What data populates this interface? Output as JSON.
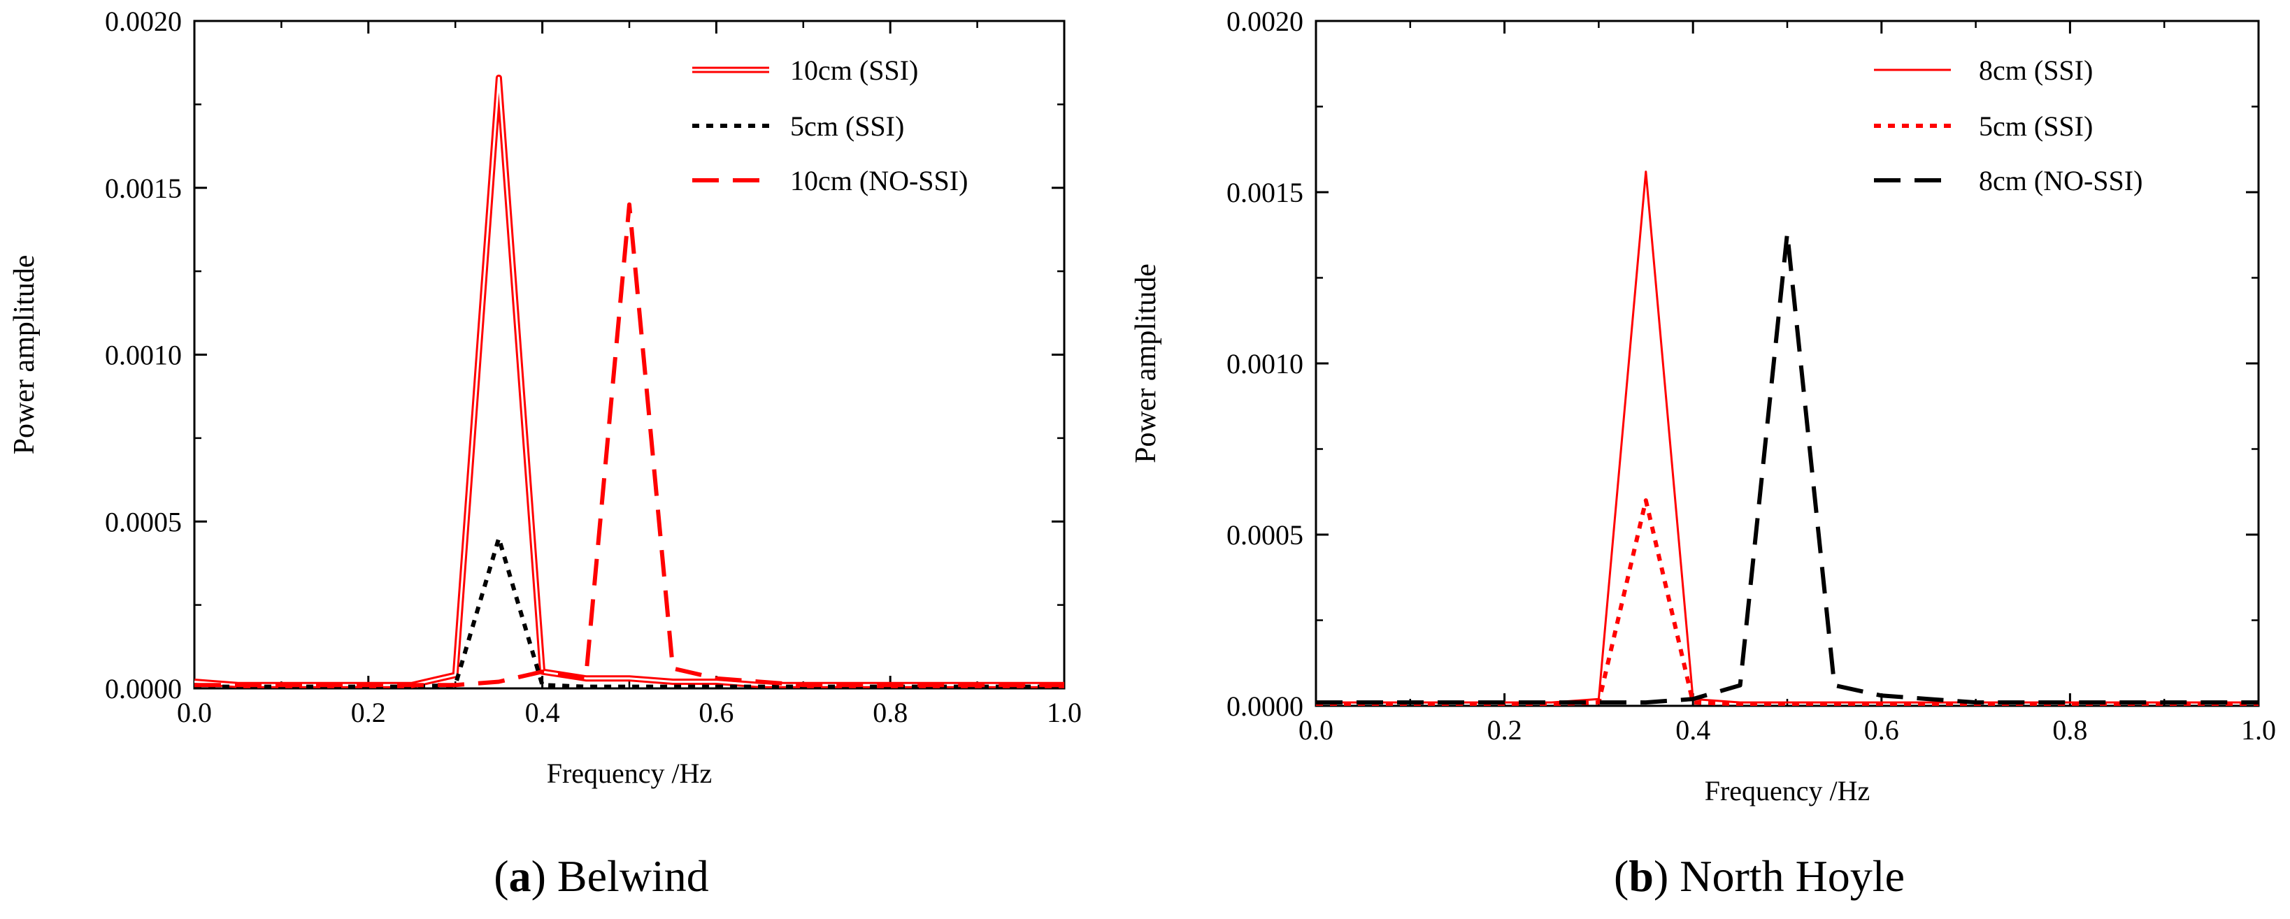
{
  "chart_data": [
    {
      "type": "line",
      "panel_letter": "a",
      "caption": "Belwind",
      "xlabel": "Frequency /Hz",
      "ylabel": "Power amplitude",
      "xlim": [
        0.0,
        1.0
      ],
      "ylim": [
        0.0,
        0.002
      ],
      "xticks": [
        "0.0",
        "0.2",
        "0.4",
        "0.6",
        "0.8",
        "1.0"
      ],
      "yticks": [
        "0.0000",
        "0.0005",
        "0.0010",
        "0.0015",
        "0.0020"
      ],
      "legend_position": "top-right",
      "series": [
        {
          "name": "10cm (SSI)",
          "color": "#ff0000",
          "style": "double",
          "x": [
            0.0,
            0.05,
            0.1,
            0.15,
            0.2,
            0.25,
            0.3,
            0.35,
            0.4,
            0.45,
            0.5,
            0.55,
            0.6,
            0.65,
            0.7,
            0.75,
            0.8,
            0.85,
            0.9,
            0.95,
            1.0
          ],
          "y": [
            2e-05,
            1e-05,
            1e-05,
            1e-05,
            1e-05,
            1e-05,
            4e-05,
            0.00183,
            5e-05,
            3e-05,
            3e-05,
            2e-05,
            2e-05,
            1e-05,
            1e-05,
            1e-05,
            1e-05,
            1e-05,
            1e-05,
            1e-05,
            1e-05
          ]
        },
        {
          "name": "5cm (SSI)",
          "color": "#000000",
          "style": "dotted",
          "x": [
            0.0,
            0.05,
            0.1,
            0.15,
            0.2,
            0.25,
            0.3,
            0.35,
            0.4,
            0.45,
            0.5,
            0.55,
            0.6,
            0.65,
            0.7,
            0.75,
            0.8,
            0.85,
            0.9,
            0.95,
            1.0
          ],
          "y": [
            5e-06,
            5e-06,
            5e-06,
            5e-06,
            5e-06,
            5e-06,
            1e-05,
            0.00045,
            1e-05,
            5e-06,
            5e-06,
            5e-06,
            5e-06,
            5e-06,
            5e-06,
            5e-06,
            5e-06,
            5e-06,
            5e-06,
            5e-06,
            5e-06
          ]
        },
        {
          "name": "10cm (NO-SSI)",
          "color": "#ff0000",
          "style": "dashed",
          "x": [
            0.0,
            0.05,
            0.1,
            0.15,
            0.2,
            0.25,
            0.3,
            0.35,
            0.4,
            0.45,
            0.5,
            0.55,
            0.6,
            0.65,
            0.7,
            0.75,
            0.8,
            0.85,
            0.9,
            0.95,
            1.0
          ],
          "y": [
            1e-05,
            1e-05,
            1e-05,
            1e-05,
            1e-05,
            1e-05,
            1e-05,
            2e-05,
            5e-05,
            3e-05,
            0.00145,
            6e-05,
            3e-05,
            2e-05,
            1e-05,
            1e-05,
            1e-05,
            1e-05,
            1e-05,
            1e-05,
            1e-05
          ]
        }
      ]
    },
    {
      "type": "line",
      "panel_letter": "b",
      "caption": "North Hoyle",
      "xlabel": "Frequency /Hz",
      "ylabel": "Power amplitude",
      "xlim": [
        0.0,
        1.0
      ],
      "ylim": [
        0.0,
        0.002
      ],
      "xticks": [
        "0.0",
        "0.2",
        "0.4",
        "0.6",
        "0.8",
        "1.0"
      ],
      "yticks": [
        "0.0000",
        "0.0005",
        "0.0010",
        "0.0015",
        "0.0020"
      ],
      "legend_position": "top-right",
      "series": [
        {
          "name": "8cm (SSI)",
          "color": "#ff0000",
          "style": "solid",
          "x": [
            0.0,
            0.05,
            0.1,
            0.15,
            0.2,
            0.25,
            0.3,
            0.35,
            0.4,
            0.45,
            0.5,
            0.55,
            0.6,
            0.65,
            0.7,
            0.75,
            0.8,
            0.85,
            0.9,
            0.95,
            1.0
          ],
          "y": [
            1e-05,
            1e-05,
            1e-05,
            1e-05,
            1e-05,
            1e-05,
            2e-05,
            0.00156,
            2e-05,
            1e-05,
            1e-05,
            1e-05,
            1e-05,
            1e-05,
            1e-05,
            1e-05,
            1e-05,
            1e-05,
            1e-05,
            1e-05,
            1e-05
          ]
        },
        {
          "name": "5cm (SSI)",
          "color": "#ff0000",
          "style": "dotted",
          "x": [
            0.0,
            0.05,
            0.1,
            0.15,
            0.2,
            0.25,
            0.3,
            0.35,
            0.4,
            0.45,
            0.5,
            0.55,
            0.6,
            0.65,
            0.7,
            0.75,
            0.8,
            0.85,
            0.9,
            0.95,
            1.0
          ],
          "y": [
            5e-06,
            5e-06,
            5e-06,
            5e-06,
            5e-06,
            5e-06,
            1e-05,
            0.0006,
            1e-05,
            5e-06,
            5e-06,
            5e-06,
            5e-06,
            5e-06,
            5e-06,
            5e-06,
            5e-06,
            5e-06,
            5e-06,
            5e-06,
            5e-06
          ]
        },
        {
          "name": "8cm (NO-SSI)",
          "color": "#000000",
          "style": "dashed",
          "x": [
            0.0,
            0.05,
            0.1,
            0.15,
            0.2,
            0.25,
            0.3,
            0.35,
            0.4,
            0.45,
            0.5,
            0.55,
            0.6,
            0.65,
            0.7,
            0.75,
            0.8,
            0.85,
            0.9,
            0.95,
            1.0
          ],
          "y": [
            1e-05,
            1e-05,
            1e-05,
            1e-05,
            1e-05,
            1e-05,
            1e-05,
            1e-05,
            2e-05,
            6e-05,
            0.00138,
            6e-05,
            3e-05,
            2e-05,
            1e-05,
            1e-05,
            1e-05,
            1e-05,
            1e-05,
            1e-05,
            1e-05
          ]
        }
      ]
    }
  ]
}
